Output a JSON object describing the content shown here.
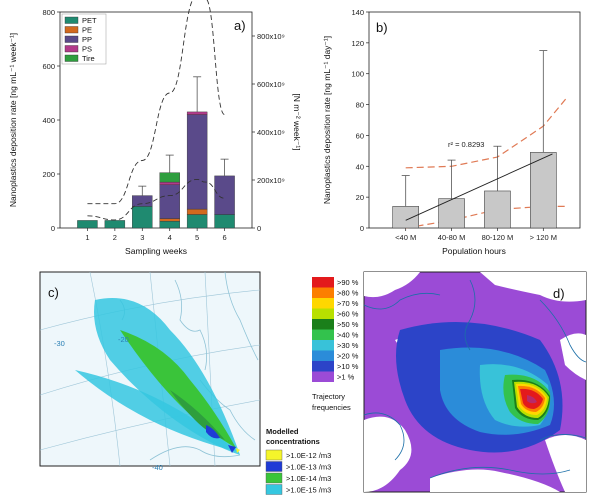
{
  "panel_labels": [
    "a)",
    "b)",
    "c)",
    "d)"
  ],
  "colors": {
    "PET": "#1f8a70",
    "PE": "#d2691e",
    "PP": "#5a4a8a",
    "PS": "#b23a8a",
    "Tire": "#2e9e3e",
    "bar_gray": "#c8c8c8",
    "dash": "#333333",
    "ci": "#e07a55",
    "sea_c": "#eef7fb",
    "land_d": "#ffffff"
  },
  "chart_data": [
    {
      "type": "bar",
      "panel": "a)",
      "stacked": true,
      "categories": [
        "1",
        "2",
        "3",
        "4",
        "5",
        "6"
      ],
      "xlabel": "Sampling weeks",
      "ylabel": "Nanoplastics deposition rate [ng mL⁻¹ week⁻¹]",
      "ylim": [
        0,
        800
      ],
      "yticks": [
        "0",
        "200",
        "400",
        "600",
        "800"
      ],
      "ylabel_right": "[N m⁻² week⁻¹]",
      "ylim_right": [
        0,
        900000000000
      ],
      "yticks_right": [
        "0",
        "200x10⁹",
        "400x10⁹",
        "600x10⁹",
        "800x10⁹"
      ],
      "legend": [
        "PET",
        "PE",
        "PP",
        "PS",
        "Tire"
      ],
      "legend_position": "top-left",
      "series": [
        {
          "name": "PET",
          "values": [
            28,
            28,
            80,
            25,
            50,
            50
          ]
        },
        {
          "name": "PE",
          "values": [
            0,
            0,
            0,
            10,
            20,
            0
          ]
        },
        {
          "name": "PP",
          "values": [
            0,
            0,
            40,
            125,
            350,
            143
          ]
        },
        {
          "name": "PS",
          "values": [
            0,
            0,
            0,
            10,
            10,
            0
          ]
        },
        {
          "name": "Tire",
          "values": [
            0,
            0,
            0,
            35,
            0,
            0
          ]
        }
      ],
      "error_upper": [
        28,
        28,
        155,
        270,
        560,
        255
      ],
      "dashed_curves": [
        {
          "x": [
            1,
            2,
            3,
            4,
            5,
            5.3,
            6
          ],
          "y": [
            90,
            90,
            250,
            500,
            860,
            850,
            420
          ]
        },
        {
          "x": [
            1,
            2,
            3,
            4,
            5,
            5.3,
            6
          ],
          "y": [
            45,
            30,
            90,
            120,
            180,
            170,
            110
          ]
        }
      ]
    },
    {
      "type": "bar",
      "panel": "b)",
      "categories": [
        "<40 M",
        "40-80 M",
        "80-120 M",
        "> 120 M"
      ],
      "values": [
        14,
        19,
        24,
        49
      ],
      "error_upper": [
        34,
        44,
        53,
        115
      ],
      "xlabel": "Population hours",
      "ylabel": "Nanoplastics deposition rate [ng mL⁻¹ day⁻¹]",
      "ylim": [
        0,
        140
      ],
      "yticks": [
        "0",
        "20",
        "40",
        "60",
        "80",
        "100",
        "120",
        "140"
      ],
      "annotation": "r² = 0.8293",
      "fit_line": {
        "x": [
          0,
          3.2
        ],
        "y": [
          5,
          48
        ]
      },
      "ci_upper": {
        "x": [
          0,
          1,
          2,
          3,
          3.5
        ],
        "y": [
          39,
          40,
          46,
          66,
          84
        ]
      },
      "ci_lower": {
        "x": [
          0,
          1,
          2,
          3,
          3.5
        ],
        "y": [
          0,
          5,
          12,
          14,
          14
        ]
      }
    }
  ],
  "map_c": {
    "grid_labels": [
      "-30",
      "-20",
      "-40"
    ],
    "legend_title": "Modelled concentrations",
    "legend": [
      {
        "label": ">1.0E-12 /m3",
        "color": "#f5f52a"
      },
      {
        "label": ">1.0E-13 /m3",
        "color": "#1f3bd6"
      },
      {
        "label": ">1.0E-14 /m3",
        "color": "#3ac43a"
      },
      {
        "label": ">1.0E-15 /m3",
        "color": "#35c7e0"
      }
    ]
  },
  "map_d": {
    "legend_title": "Trajectory frequencies",
    "legend": [
      {
        "label": ">90 %",
        "color": "#e31a1c"
      },
      {
        "label": ">80 %",
        "color": "#fc7f00"
      },
      {
        "label": ">70 %",
        "color": "#ffd700"
      },
      {
        "label": ">60 %",
        "color": "#b8e000"
      },
      {
        "label": ">50 %",
        "color": "#1a7f1a"
      },
      {
        "label": ">40 %",
        "color": "#33c24d"
      },
      {
        "label": ">30 %",
        "color": "#38c2d9"
      },
      {
        "label": ">20 %",
        "color": "#2b8cd9"
      },
      {
        "label": ">10 %",
        "color": "#2c44c8"
      },
      {
        "label": ">1 %",
        "color": "#9b4bd6"
      }
    ]
  }
}
